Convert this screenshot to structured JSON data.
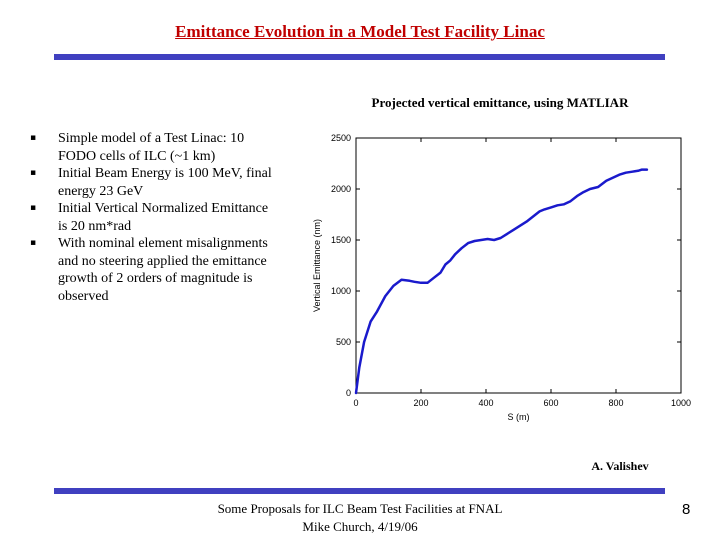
{
  "slide": {
    "title": "Emittance Evolution in a Model Test Facility Linac",
    "chart_caption": "Projected vertical emittance, using MATLIAR",
    "bullets": [
      "Simple model of a Test Linac: 10 FODO cells of ILC (~1 km)",
      "Initial Beam Energy is 100 MeV, final energy 23 GeV",
      "Initial Vertical Normalized Emittance is 20 nm*rad",
      "With nominal element misalignments and no steering applied the emittance growth of 2 orders of magnitude is observed"
    ],
    "bullet_glyph": "▪",
    "author": "A. Valishev",
    "footer_line1": "Some Proposals for ILC Beam Test Facilities at FNAL",
    "footer_line2": "Mike Church, 4/19/06",
    "page_number": "8",
    "rule_color": "#4040c0",
    "title_color": "#c00000"
  },
  "chart_data": {
    "type": "line",
    "xlabel": "S (m)",
    "ylabel": "Vertical Emittance (nm)",
    "xlim": [
      0,
      1000
    ],
    "ylim": [
      0,
      2500
    ],
    "xticks": [
      0,
      200,
      400,
      600,
      800,
      1000
    ],
    "xtick_labels": [
      "0",
      "200",
      "400",
      "600",
      "800",
      "1000"
    ],
    "yticks": [
      0,
      500,
      1000,
      1500,
      2000,
      2500
    ],
    "ytick_labels": [
      "0",
      "500",
      "1000",
      "1500",
      "2000",
      "2500"
    ],
    "series_color": "#1a1acc",
    "x": [
      0,
      10,
      25,
      45,
      65,
      90,
      115,
      140,
      165,
      180,
      200,
      220,
      240,
      260,
      275,
      290,
      305,
      325,
      345,
      365,
      385,
      405,
      425,
      445,
      465,
      485,
      505,
      525,
      545,
      565,
      580,
      600,
      620,
      640,
      660,
      680,
      700,
      720,
      745,
      770,
      790,
      810,
      830,
      850,
      870,
      880,
      895
    ],
    "y": [
      0,
      250,
      500,
      700,
      800,
      950,
      1050,
      1110,
      1100,
      1090,
      1080,
      1080,
      1130,
      1180,
      1260,
      1300,
      1360,
      1420,
      1470,
      1490,
      1500,
      1510,
      1500,
      1520,
      1560,
      1600,
      1640,
      1680,
      1730,
      1780,
      1800,
      1820,
      1840,
      1850,
      1880,
      1930,
      1970,
      2000,
      2020,
      2080,
      2110,
      2140,
      2160,
      2170,
      2180,
      2190,
      2190
    ]
  }
}
